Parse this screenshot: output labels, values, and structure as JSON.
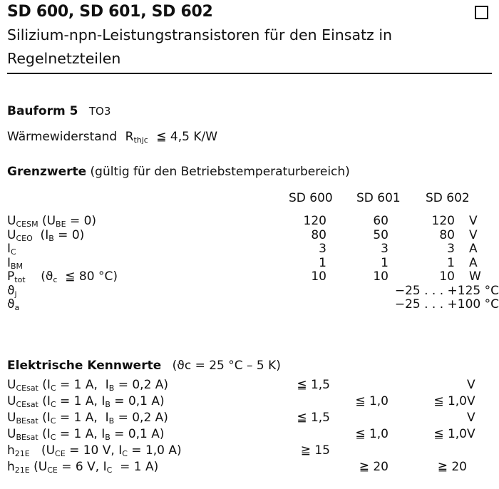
{
  "header": {
    "title": "SD 600, SD 601, SD 602",
    "subtitle_line1": "Silizium-npn-Leistungstransistoren für den Einsatz in",
    "subtitle_line2": "Regelnetzteilen"
  },
  "bauform": {
    "label": "Bauform 5",
    "value": "TO3"
  },
  "waermewiderstand": {
    "label": "Wärmewiderstand",
    "symbol": "R",
    "symbol_sub": "thjc",
    "value": "≦ 4,5 K/W"
  },
  "grenzwerte": {
    "heading": "Grenzwerte",
    "note": "(gültig für den Betriebstemperaturbereich)",
    "columns": [
      "SD 600",
      "SD 601",
      "SD 602"
    ],
    "rows": [
      {
        "label": [
          {
            "t": "U"
          },
          {
            "t": "CESM",
            "sub": true
          },
          {
            "t": " (U"
          },
          {
            "t": "BE",
            "sub": true
          },
          {
            "t": " = 0)"
          }
        ],
        "values": [
          "120",
          "60",
          "120"
        ],
        "unit": "V"
      },
      {
        "label": [
          {
            "t": "U"
          },
          {
            "t": "CEO",
            "sub": true
          },
          {
            "t": "  (I"
          },
          {
            "t": "B",
            "sub": true
          },
          {
            "t": " = 0)"
          }
        ],
        "values": [
          "80",
          "50",
          "80"
        ],
        "unit": "V"
      },
      {
        "label": [
          {
            "t": "I"
          },
          {
            "t": "C",
            "sub": true
          }
        ],
        "values": [
          "3",
          "3",
          "3"
        ],
        "unit": "A"
      },
      {
        "label": [
          {
            "t": "I"
          },
          {
            "t": "BM",
            "sub": true
          }
        ],
        "values": [
          "1",
          "1",
          "1"
        ],
        "unit": "A"
      },
      {
        "label": [
          {
            "t": "P"
          },
          {
            "t": "tot",
            "sub": true
          },
          {
            "t": "    (ϑ"
          },
          {
            "t": "c",
            "sub": true
          },
          {
            "t": "  ≦ 80 °C)"
          }
        ],
        "values": [
          "10",
          "10",
          "10"
        ],
        "unit": "W"
      },
      {
        "label": [
          {
            "t": "ϑ"
          },
          {
            "t": "j",
            "sub": true
          }
        ],
        "range": "−25 . . . +125 °C"
      },
      {
        "label": [
          {
            "t": "ϑ"
          },
          {
            "t": "a",
            "sub": true
          }
        ],
        "range": "−25 . . . +100 °C"
      }
    ]
  },
  "kennwerte": {
    "heading": "Elektrische Kennwerte",
    "note": "(ϑc = 25 °C – 5 K)",
    "rows": [
      {
        "label": [
          {
            "t": "U"
          },
          {
            "t": "CEsat",
            "sub": true
          },
          {
            "t": " (I"
          },
          {
            "t": "C",
            "sub": true
          },
          {
            "t": " = 1 A,  I"
          },
          {
            "t": "B",
            "sub": true
          },
          {
            "t": " = 0,2 A)"
          }
        ],
        "values": [
          "≦ 1,5",
          "",
          ""
        ],
        "unit": "V"
      },
      {
        "label": [
          {
            "t": "U"
          },
          {
            "t": "CEsat",
            "sub": true
          },
          {
            "t": " (I"
          },
          {
            "t": "C",
            "sub": true
          },
          {
            "t": " = 1 A, I"
          },
          {
            "t": "B",
            "sub": true
          },
          {
            "t": " = 0,1 A)"
          }
        ],
        "values": [
          "",
          "≦ 1,0",
          "≦ 1,0"
        ],
        "unit": "V"
      },
      {
        "label": [
          {
            "t": "U"
          },
          {
            "t": "BEsat",
            "sub": true
          },
          {
            "t": " (I"
          },
          {
            "t": "C",
            "sub": true
          },
          {
            "t": " = 1 A,  I"
          },
          {
            "t": "B",
            "sub": true
          },
          {
            "t": " = 0,2 A)"
          }
        ],
        "values": [
          "≦ 1,5",
          "",
          ""
        ],
        "unit": "V"
      },
      {
        "label": [
          {
            "t": "U"
          },
          {
            "t": "BEsat",
            "sub": true
          },
          {
            "t": " (I"
          },
          {
            "t": "C",
            "sub": true
          },
          {
            "t": " = 1 A, I"
          },
          {
            "t": "B",
            "sub": true
          },
          {
            "t": " = 0,1 A)"
          }
        ],
        "values": [
          "",
          "≦ 1,0",
          "≦ 1,0"
        ],
        "unit": "V"
      },
      {
        "label": [
          {
            "t": "h"
          },
          {
            "t": "21E",
            "sub": true
          },
          {
            "t": "   (U"
          },
          {
            "t": "CE",
            "sub": true
          },
          {
            "t": " = 10 V, I"
          },
          {
            "t": "C",
            "sub": true
          },
          {
            "t": " = 1,0 A)"
          }
        ],
        "values": [
          "≧ 15",
          "",
          ""
        ],
        "unit": ""
      },
      {
        "label": [
          {
            "t": "h"
          },
          {
            "t": "21E",
            "sub": true
          },
          {
            "t": " (U"
          },
          {
            "t": "CE",
            "sub": true
          },
          {
            "t": " = 6 V, I"
          },
          {
            "t": "C",
            "sub": true
          },
          {
            "t": "  = 1 A)"
          }
        ],
        "values": [
          "",
          "≧ 20",
          "≧ 20"
        ],
        "unit": ""
      }
    ]
  }
}
